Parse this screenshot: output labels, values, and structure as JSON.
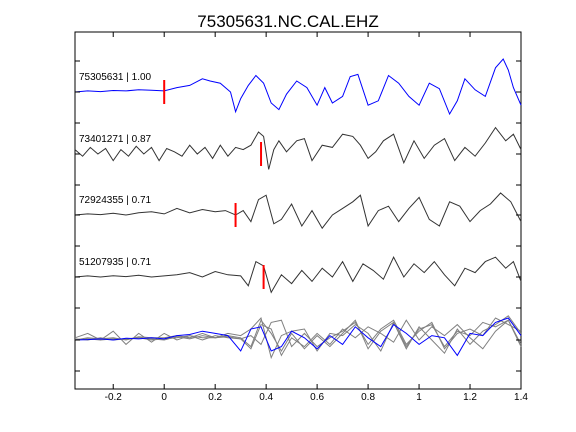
{
  "chart_data": {
    "type": "line",
    "title": "75305631.NC.CAL.EHZ",
    "xlabel": "",
    "ylabel": "",
    "xlim": [
      -0.35,
      1.4
    ],
    "x_ticks": [
      -0.2,
      0,
      0.2,
      0.4,
      0.6,
      0.8,
      1,
      1.2,
      1.4
    ],
    "x_tick_labels": [
      "-0.2",
      "0",
      "0.2",
      "0.4",
      "0.6",
      "0.8",
      "1",
      "1.2",
      "1.4"
    ],
    "grid": false,
    "colors": {
      "master": "#0000ff",
      "trace": "#333333",
      "stack_gray": "#808080",
      "pick": "#ff0000"
    },
    "traces": [
      {
        "label": "75305631 | 1.00",
        "color": "#0000ff",
        "pick_x": 0.0,
        "x": [
          -0.35,
          -0.3,
          -0.25,
          -0.2,
          -0.15,
          -0.1,
          -0.05,
          0.0,
          0.05,
          0.1,
          0.15,
          0.18,
          0.22,
          0.26,
          0.28,
          0.3,
          0.33,
          0.36,
          0.39,
          0.42,
          0.45,
          0.48,
          0.52,
          0.56,
          0.6,
          0.63,
          0.66,
          0.7,
          0.73,
          0.76,
          0.8,
          0.84,
          0.88,
          0.92,
          0.96,
          1.0,
          1.04,
          1.08,
          1.12,
          1.15,
          1.18,
          1.22,
          1.26,
          1.3,
          1.33,
          1.35,
          1.37,
          1.4
        ],
        "y": [
          0.0,
          0.05,
          0.02,
          0.07,
          0.05,
          0.1,
          0.08,
          0.05,
          0.2,
          0.3,
          0.6,
          0.5,
          0.4,
          0.0,
          -0.9,
          -0.3,
          0.3,
          0.75,
          0.4,
          -0.5,
          -0.8,
          -0.1,
          0.5,
          0.2,
          -0.6,
          0.2,
          -0.5,
          -0.2,
          0.7,
          0.8,
          -0.6,
          -0.4,
          0.75,
          0.4,
          -0.2,
          -0.6,
          0.4,
          0.15,
          -1.0,
          -0.4,
          0.6,
          0.1,
          -0.2,
          1.1,
          1.5,
          1.0,
          0.2,
          -0.6
        ]
      },
      {
        "label": "73401271 | 0.87",
        "color": "#333333",
        "pick_x": 0.38,
        "x": [
          -0.35,
          -0.32,
          -0.29,
          -0.26,
          -0.23,
          -0.2,
          -0.17,
          -0.14,
          -0.11,
          -0.08,
          -0.05,
          -0.02,
          0.01,
          0.04,
          0.07,
          0.1,
          0.13,
          0.16,
          0.19,
          0.22,
          0.25,
          0.28,
          0.31,
          0.34,
          0.37,
          0.39,
          0.41,
          0.43,
          0.45,
          0.48,
          0.52,
          0.55,
          0.58,
          0.62,
          0.66,
          0.7,
          0.74,
          0.77,
          0.8,
          0.83,
          0.86,
          0.9,
          0.94,
          0.98,
          1.02,
          1.06,
          1.1,
          1.14,
          1.18,
          1.22,
          1.26,
          1.3,
          1.34,
          1.37,
          1.4
        ],
        "y": [
          0.2,
          -0.1,
          0.3,
          0.0,
          0.25,
          -0.3,
          0.2,
          -0.1,
          0.35,
          0.0,
          0.3,
          -0.3,
          0.25,
          0.1,
          -0.1,
          0.4,
          0.0,
          0.3,
          -0.2,
          0.4,
          -0.1,
          0.3,
          0.2,
          0.4,
          1.0,
          0.8,
          -0.7,
          0.2,
          0.6,
          0.1,
          0.6,
          0.7,
          -0.3,
          0.4,
          0.3,
          0.9,
          0.8,
          0.4,
          -0.2,
          0.1,
          0.6,
          0.9,
          -0.4,
          0.6,
          -0.2,
          0.4,
          0.7,
          -0.3,
          0.3,
          -0.1,
          0.5,
          1.2,
          0.6,
          0.9,
          0.2
        ]
      },
      {
        "label": "72924355 | 0.71",
        "color": "#333333",
        "pick_x": 0.28,
        "x": [
          -0.35,
          -0.3,
          -0.25,
          -0.2,
          -0.15,
          -0.1,
          -0.05,
          0.0,
          0.05,
          0.1,
          0.15,
          0.2,
          0.24,
          0.28,
          0.31,
          0.34,
          0.37,
          0.4,
          0.43,
          0.46,
          0.5,
          0.54,
          0.58,
          0.62,
          0.66,
          0.7,
          0.74,
          0.77,
          0.8,
          0.84,
          0.88,
          0.92,
          0.96,
          1.0,
          1.04,
          1.08,
          1.12,
          1.16,
          1.2,
          1.24,
          1.28,
          1.32,
          1.36,
          1.4
        ],
        "y": [
          0.0,
          0.05,
          0.02,
          0.08,
          0.0,
          0.1,
          0.15,
          0.05,
          0.3,
          0.1,
          0.25,
          0.15,
          0.2,
          0.0,
          0.2,
          -0.3,
          0.7,
          0.9,
          -0.4,
          -0.2,
          0.5,
          -0.5,
          0.2,
          -0.6,
          0.0,
          0.3,
          0.6,
          0.9,
          -0.5,
          0.2,
          0.4,
          -0.3,
          0.3,
          0.8,
          -0.2,
          -0.5,
          0.6,
          0.4,
          -0.3,
          0.2,
          0.5,
          1.0,
          0.6,
          -0.3
        ]
      },
      {
        "label": "51207935 | 0.71",
        "color": "#333333",
        "pick_x": 0.39,
        "x": [
          -0.35,
          -0.3,
          -0.25,
          -0.2,
          -0.15,
          -0.1,
          -0.05,
          0.0,
          0.05,
          0.1,
          0.15,
          0.2,
          0.25,
          0.3,
          0.33,
          0.36,
          0.39,
          0.42,
          0.46,
          0.5,
          0.54,
          0.58,
          0.62,
          0.66,
          0.7,
          0.74,
          0.78,
          0.82,
          0.86,
          0.9,
          0.94,
          0.98,
          1.02,
          1.06,
          1.1,
          1.14,
          1.18,
          1.22,
          1.26,
          1.3,
          1.34,
          1.37,
          1.4
        ],
        "y": [
          0.0,
          0.05,
          0.0,
          0.06,
          0.02,
          0.08,
          0.0,
          0.05,
          0.1,
          0.2,
          0.0,
          0.25,
          0.1,
          0.05,
          -0.4,
          0.7,
          0.5,
          -0.7,
          0.1,
          -0.3,
          0.3,
          -0.2,
          0.4,
          0.0,
          0.7,
          -0.2,
          0.6,
          0.3,
          -0.1,
          0.9,
          0.0,
          0.6,
          0.2,
          0.7,
          0.1,
          -0.4,
          0.4,
          0.2,
          0.7,
          0.9,
          0.4,
          0.7,
          -0.2
        ]
      }
    ],
    "stack": {
      "lines": [
        {
          "color": "#808080",
          "x": [
            -0.35,
            -0.3,
            -0.25,
            -0.2,
            -0.15,
            -0.1,
            -0.05,
            0.0,
            0.05,
            0.1,
            0.15,
            0.2,
            0.25,
            0.3,
            0.34,
            0.38,
            0.42,
            0.46,
            0.5,
            0.55,
            0.6,
            0.65,
            0.7,
            0.75,
            0.8,
            0.85,
            0.9,
            0.95,
            1.0,
            1.05,
            1.1,
            1.15,
            1.2,
            1.25,
            1.3,
            1.35,
            1.4
          ],
          "y": [
            0.1,
            0.3,
            0.0,
            0.4,
            -0.2,
            0.3,
            -0.1,
            0.3,
            0.0,
            0.2,
            0.1,
            0.1,
            0.3,
            0.2,
            0.5,
            1.0,
            -0.8,
            0.2,
            0.4,
            0.5,
            -0.5,
            0.3,
            0.2,
            0.7,
            0.3,
            -0.5,
            0.8,
            -0.4,
            0.6,
            0.0,
            -0.6,
            0.5,
            -0.2,
            0.4,
            0.7,
            1.1,
            0.3
          ]
        },
        {
          "color": "#808080",
          "x": [
            -0.35,
            -0.3,
            -0.25,
            -0.2,
            -0.15,
            -0.1,
            -0.05,
            0.0,
            0.05,
            0.1,
            0.15,
            0.2,
            0.25,
            0.3,
            0.34,
            0.38,
            0.42,
            0.46,
            0.5,
            0.55,
            0.6,
            0.65,
            0.7,
            0.75,
            0.8,
            0.85,
            0.9,
            0.95,
            1.0,
            1.05,
            1.1,
            1.15,
            1.2,
            1.25,
            1.3,
            1.35,
            1.4
          ],
          "y": [
            0.0,
            0.1,
            0.05,
            0.1,
            0.0,
            0.15,
            0.1,
            0.1,
            0.2,
            0.1,
            0.3,
            0.1,
            0.2,
            0.1,
            -0.3,
            0.9,
            0.3,
            -0.5,
            0.3,
            -0.4,
            0.2,
            -0.3,
            0.3,
            0.9,
            -0.4,
            0.4,
            0.8,
            -0.3,
            0.5,
            0.7,
            -0.3,
            0.4,
            0.2,
            0.8,
            0.6,
            0.9,
            -0.2
          ]
        },
        {
          "color": "#808080",
          "x": [
            -0.35,
            -0.3,
            -0.25,
            -0.2,
            -0.15,
            -0.1,
            -0.05,
            0.0,
            0.05,
            0.1,
            0.15,
            0.2,
            0.25,
            0.3,
            0.34,
            0.38,
            0.42,
            0.46,
            0.5,
            0.55,
            0.6,
            0.65,
            0.7,
            0.75,
            0.8,
            0.85,
            0.9,
            0.95,
            1.0,
            1.05,
            1.1,
            1.15,
            1.2,
            1.25,
            1.3,
            1.35,
            1.4
          ],
          "y": [
            0.0,
            0.05,
            0.0,
            0.05,
            0.02,
            0.1,
            0.0,
            0.05,
            0.1,
            0.2,
            0.0,
            0.2,
            0.1,
            0.05,
            -0.4,
            0.7,
            0.5,
            -0.7,
            0.1,
            -0.3,
            0.3,
            -0.2,
            0.5,
            0.1,
            0.6,
            0.3,
            -0.1,
            0.9,
            0.0,
            0.6,
            0.2,
            0.7,
            0.1,
            -0.4,
            0.4,
            0.9,
            -0.3
          ]
        },
        {
          "color": "#808080",
          "x": [
            -0.35,
            -0.3,
            -0.25,
            -0.2,
            -0.15,
            -0.1,
            -0.05,
            0.0,
            0.05,
            0.1,
            0.15,
            0.2,
            0.25,
            0.3,
            0.34,
            0.38,
            0.42,
            0.46,
            0.5,
            0.55,
            0.6,
            0.65,
            0.7,
            0.75,
            0.8,
            0.85,
            0.9,
            0.95,
            1.0,
            1.05,
            1.1,
            1.15,
            1.2,
            1.25,
            1.3,
            1.35,
            1.4
          ],
          "y": [
            0.05,
            0.0,
            0.1,
            0.0,
            0.05,
            0.1,
            0.05,
            0.0,
            0.15,
            0.05,
            0.2,
            0.1,
            0.15,
            0.05,
            0.2,
            -0.2,
            0.8,
            0.9,
            -0.3,
            0.3,
            -0.3,
            0.1,
            0.4,
            0.8,
            -0.2,
            0.5,
            0.9,
            -0.2,
            0.4,
            0.8,
            -0.4,
            0.3,
            0.5,
            0.2,
            1.0,
            0.7,
            0.4
          ]
        },
        {
          "color": "#0000ff",
          "x": [
            -0.35,
            -0.3,
            -0.25,
            -0.2,
            -0.15,
            -0.1,
            -0.05,
            0.0,
            0.05,
            0.1,
            0.15,
            0.2,
            0.25,
            0.3,
            0.34,
            0.38,
            0.42,
            0.46,
            0.5,
            0.55,
            0.6,
            0.65,
            0.7,
            0.75,
            0.8,
            0.85,
            0.9,
            0.95,
            1.0,
            1.05,
            1.1,
            1.15,
            1.2,
            1.25,
            1.3,
            1.35,
            1.4
          ],
          "y": [
            0.0,
            0.02,
            0.05,
            0.0,
            0.08,
            0.05,
            0.1,
            0.05,
            0.2,
            0.25,
            0.4,
            0.3,
            0.2,
            -0.5,
            0.5,
            0.6,
            -0.5,
            -0.3,
            0.4,
            0.1,
            -0.4,
            0.2,
            -0.2,
            0.6,
            0.1,
            -0.3,
            0.7,
            0.3,
            -0.2,
            0.2,
            0.1,
            -0.7,
            0.3,
            0.2,
            0.8,
            1.0,
            0.2
          ]
        }
      ]
    }
  }
}
